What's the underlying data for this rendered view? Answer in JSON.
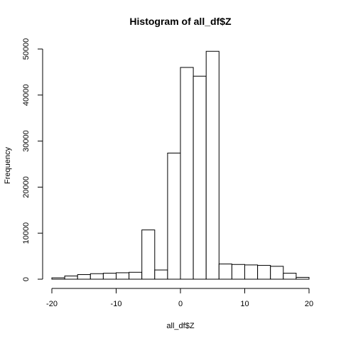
{
  "chart_data": {
    "type": "bar",
    "title": "Histogram of all_df$Z",
    "xlabel": "all_df$Z",
    "ylabel": "Frequency",
    "bin_edges": [
      -20,
      -18,
      -16,
      -14,
      -12,
      -10,
      -8,
      -6,
      -4,
      -2,
      0,
      2,
      4,
      6,
      8,
      10,
      12,
      14,
      16,
      18,
      20
    ],
    "values": [
      300,
      700,
      1000,
      1200,
      1300,
      1400,
      1500,
      10700,
      2000,
      27400,
      46000,
      44100,
      49500,
      3300,
      3200,
      3100,
      3000,
      2800,
      1300,
      400
    ],
    "xlim": [
      -20,
      20
    ],
    "ylim": [
      0,
      50000
    ],
    "x_ticks": [
      -20,
      -10,
      0,
      10,
      20
    ],
    "y_ticks": [
      0,
      10000,
      20000,
      30000,
      40000,
      50000
    ],
    "grid": false,
    "colors": {
      "bar_fill": "#ffffff",
      "bar_stroke": "#000000"
    }
  }
}
